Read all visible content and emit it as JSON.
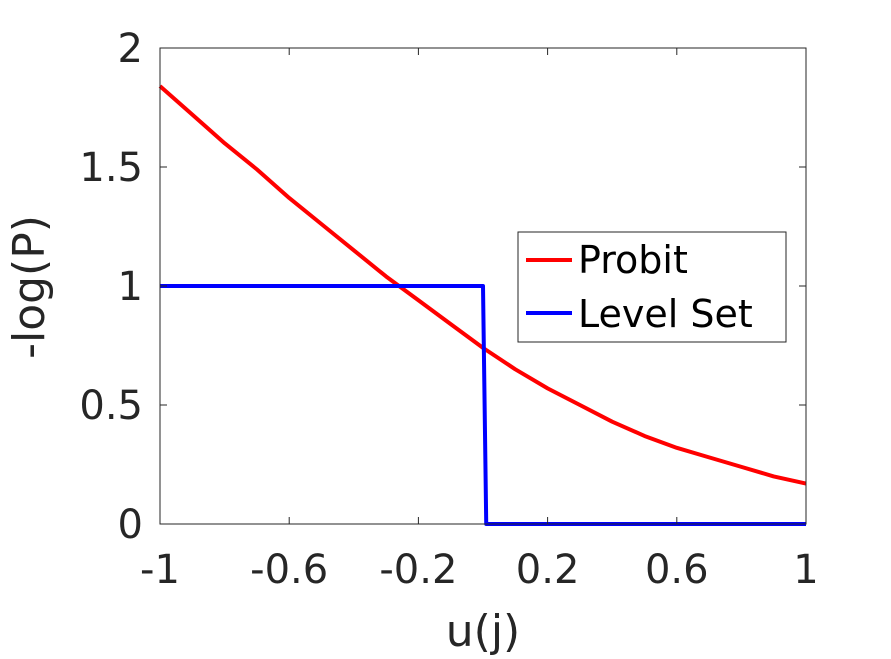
{
  "chart_data": {
    "type": "line",
    "title": "",
    "xlabel": "u(j)",
    "ylabel": "-log(P)",
    "xlim": [
      -1,
      1
    ],
    "ylim": [
      0,
      2
    ],
    "xticks": [
      -1,
      -0.6,
      -0.2,
      0.2,
      0.6,
      1
    ],
    "xtick_labels": [
      "-1",
      "-0.6",
      "-0.2",
      "0.2",
      "0.6",
      "1"
    ],
    "yticks": [
      0,
      0.5,
      1,
      1.5,
      2
    ],
    "ytick_labels": [
      "0",
      "0.5",
      "1",
      "1.5",
      "2"
    ],
    "grid": false,
    "legend_position": "middle-right",
    "series": [
      {
        "name": "Probit",
        "color": "#ff0000",
        "x": [
          -1,
          -0.9,
          -0.8,
          -0.7,
          -0.6,
          -0.5,
          -0.4,
          -0.3,
          -0.2,
          -0.1,
          0,
          0.1,
          0.2,
          0.3,
          0.4,
          0.5,
          0.6,
          0.7,
          0.8,
          0.9,
          1
        ],
        "y": [
          1.84,
          1.72,
          1.6,
          1.49,
          1.37,
          1.26,
          1.15,
          1.04,
          0.94,
          0.84,
          0.74,
          0.65,
          0.57,
          0.5,
          0.43,
          0.37,
          0.32,
          0.28,
          0.24,
          0.2,
          0.17
        ]
      },
      {
        "name": "Level Set",
        "color": "#0000ff",
        "x": [
          -1,
          0,
          0.01,
          1
        ],
        "y": [
          1,
          1,
          0,
          0
        ]
      }
    ]
  }
}
